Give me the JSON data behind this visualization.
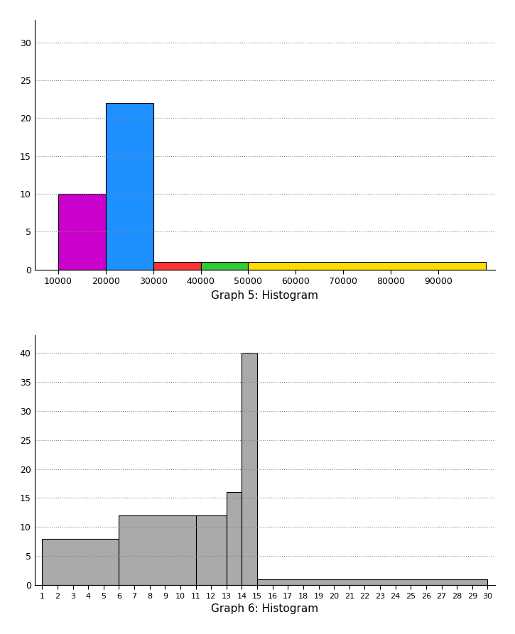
{
  "graph5": {
    "title": "Graph 5: Histogram",
    "bar_lefts": [
      10000,
      20000,
      30000,
      40000,
      50000
    ],
    "bar_widths": [
      10000,
      10000,
      10000,
      10000,
      50000
    ],
    "heights": [
      10,
      22,
      1,
      1,
      1
    ],
    "colors": [
      "#cc00cc",
      "#1e90ff",
      "#ff3333",
      "#33cc33",
      "#ffdd00"
    ],
    "ylim": [
      0,
      33
    ],
    "yticks": [
      0,
      5,
      10,
      15,
      20,
      25,
      30
    ],
    "xlim": [
      5000,
      102000
    ],
    "xticks": [
      10000,
      20000,
      30000,
      40000,
      50000,
      60000,
      70000,
      80000,
      90000
    ],
    "xticklabels": [
      "10000",
      "20000",
      "30000",
      "40000",
      "50000",
      "60000",
      "70000",
      "80000",
      "90000"
    ]
  },
  "graph6": {
    "title": "Graph 6: Histogram",
    "bar_lefts": [
      1,
      6,
      11,
      13,
      14,
      15
    ],
    "bar_widths": [
      5,
      5,
      2,
      1,
      1,
      15
    ],
    "heights": [
      8,
      12,
      12,
      16,
      40,
      1
    ],
    "color": "#aaaaaa",
    "ylim": [
      0,
      43
    ],
    "yticks": [
      0,
      5,
      10,
      15,
      20,
      25,
      30,
      35,
      40
    ],
    "xlim": [
      0.5,
      30.5
    ],
    "xticks": [
      1,
      2,
      3,
      4,
      5,
      6,
      7,
      8,
      9,
      10,
      11,
      12,
      13,
      14,
      15,
      16,
      17,
      18,
      19,
      20,
      21,
      22,
      23,
      24,
      25,
      26,
      27,
      28,
      29,
      30
    ],
    "xticklabels": [
      "1",
      "2",
      "3",
      "4",
      "5",
      "6",
      "7",
      "8",
      "9",
      "10",
      "11",
      "12",
      "13",
      "14",
      "15",
      "16",
      "17",
      "18",
      "19",
      "20",
      "21",
      "22",
      "23",
      "24",
      "25",
      "26",
      "27",
      "28",
      "29",
      "30"
    ]
  },
  "background_color": "#ffffff",
  "grid_color": "#888888",
  "title_fontsize": 11,
  "tick_fontsize": 9
}
